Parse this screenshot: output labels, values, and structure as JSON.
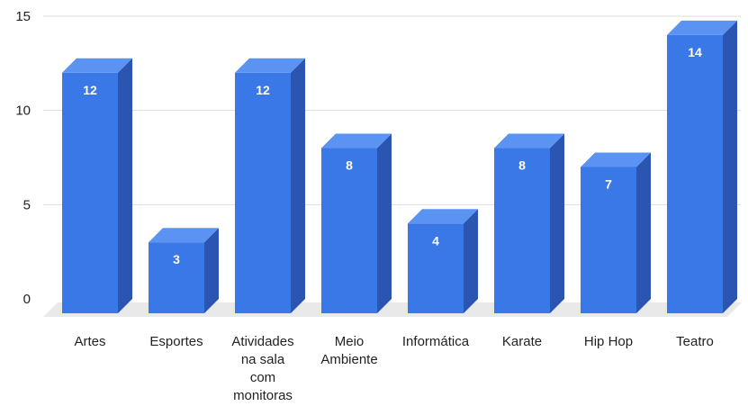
{
  "chart_data": {
    "type": "bar",
    "style": "3d",
    "categories": [
      [
        "Artes"
      ],
      [
        "Esportes"
      ],
      [
        "Atividades",
        "na sala",
        "com",
        "monitoras"
      ],
      [
        "Meio",
        "Ambiente"
      ],
      [
        "Informática"
      ],
      [
        "Karate"
      ],
      [
        "Hip Hop"
      ],
      [
        "Teatro"
      ]
    ],
    "values": [
      12,
      3,
      12,
      8,
      4,
      8,
      7,
      14
    ],
    "value_labels": [
      "12",
      "3",
      "12",
      "8",
      "4",
      "8",
      "7",
      "14"
    ],
    "y_ticks": [
      "0",
      "5",
      "10",
      "15"
    ],
    "ylim": [
      0,
      15
    ],
    "grid": true,
    "legend": "none",
    "colors": {
      "bar_front": "#3b78e7",
      "bar_side": "#2a55b0",
      "bar_top": "#5b93f3",
      "gridline": "#dddddd",
      "floor": "#e9e9e9"
    }
  }
}
